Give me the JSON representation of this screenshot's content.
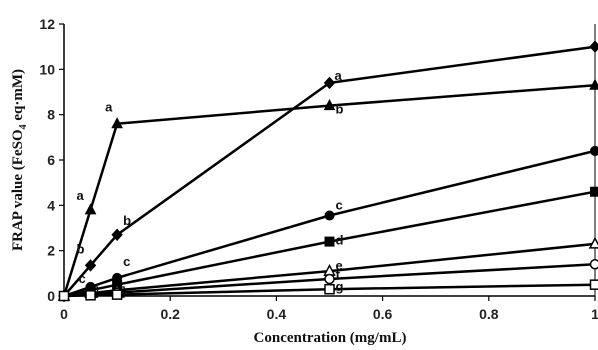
{
  "chart_data": {
    "type": "line",
    "xlabel": "Concentration (mg/mL)",
    "ylabel_prefix": "FRAP value (FeSO",
    "ylabel_sub": "4",
    "ylabel_suffix": " eq·mM)",
    "xlim": [
      0,
      1
    ],
    "ylim": [
      0,
      12
    ],
    "x_ticks": [
      0,
      0.2,
      0.4,
      0.6,
      0.8,
      1
    ],
    "x_tick_labels": [
      "0",
      "0.2",
      "0.4",
      "0.6",
      "0.8",
      "1"
    ],
    "y_ticks": [
      0,
      2,
      4,
      6,
      8,
      10,
      12
    ],
    "y_tick_labels": [
      "0",
      "2",
      "4",
      "6",
      "8",
      "10",
      "12"
    ],
    "grid": false,
    "legend": "none",
    "series": [
      {
        "marker": "triangle",
        "color": "#000000",
        "x": [
          0,
          0.05,
          0.1,
          0.5,
          1
        ],
        "y": [
          0,
          3.8,
          7.6,
          8.4,
          9.3
        ]
      },
      {
        "marker": "diamond",
        "color": "#000000",
        "x": [
          0,
          0.05,
          0.1,
          0.5,
          1
        ],
        "y": [
          0,
          1.35,
          2.7,
          9.4,
          11.0
        ]
      },
      {
        "marker": "circle",
        "color": "#000000",
        "x": [
          0,
          0.05,
          0.1,
          0.5,
          1
        ],
        "y": [
          0,
          0.4,
          0.8,
          3.55,
          6.4
        ]
      },
      {
        "marker": "square",
        "color": "#000000",
        "x": [
          0,
          0.05,
          0.1,
          0.5,
          1
        ],
        "y": [
          0,
          0.25,
          0.5,
          2.4,
          4.6
        ]
      },
      {
        "marker": "triangle-open",
        "color": "#000000",
        "x": [
          0,
          0.05,
          0.1,
          0.5,
          1
        ],
        "y": [
          0,
          0.12,
          0.25,
          1.1,
          2.3
        ]
      },
      {
        "marker": "circle-open",
        "color": "#000000",
        "x": [
          0,
          0.05,
          0.1,
          0.5,
          1
        ],
        "y": [
          0,
          0.08,
          0.15,
          0.75,
          1.4
        ]
      },
      {
        "marker": "square-open",
        "color": "#000000",
        "x": [
          0,
          0.05,
          0.1,
          0.5,
          1
        ],
        "y": [
          0,
          0.03,
          0.06,
          0.3,
          0.5
        ]
      }
    ],
    "annotations": [
      {
        "text": "a",
        "x": 0.1,
        "y": 7.6
      },
      {
        "text": "a",
        "x": 0.05,
        "y": 3.8
      },
      {
        "text": "b",
        "x": 0.05,
        "y": 1.35
      },
      {
        "text": "c",
        "x": 0.05,
        "y": 0.4
      },
      {
        "text": "b",
        "x": 0.1,
        "y": 2.7
      },
      {
        "text": "c",
        "x": 0.1,
        "y": 0.8
      },
      {
        "text": "a",
        "x": 0.5,
        "y": 9.4
      },
      {
        "text": "b",
        "x": 0.5,
        "y": 8.4
      },
      {
        "text": "c",
        "x": 0.5,
        "y": 3.55
      },
      {
        "text": "d",
        "x": 0.5,
        "y": 2.4
      },
      {
        "text": "e",
        "x": 0.5,
        "y": 1.1
      },
      {
        "text": "f",
        "x": 0.5,
        "y": 0.75
      },
      {
        "text": "g",
        "x": 0.5,
        "y": 0.3
      }
    ]
  }
}
